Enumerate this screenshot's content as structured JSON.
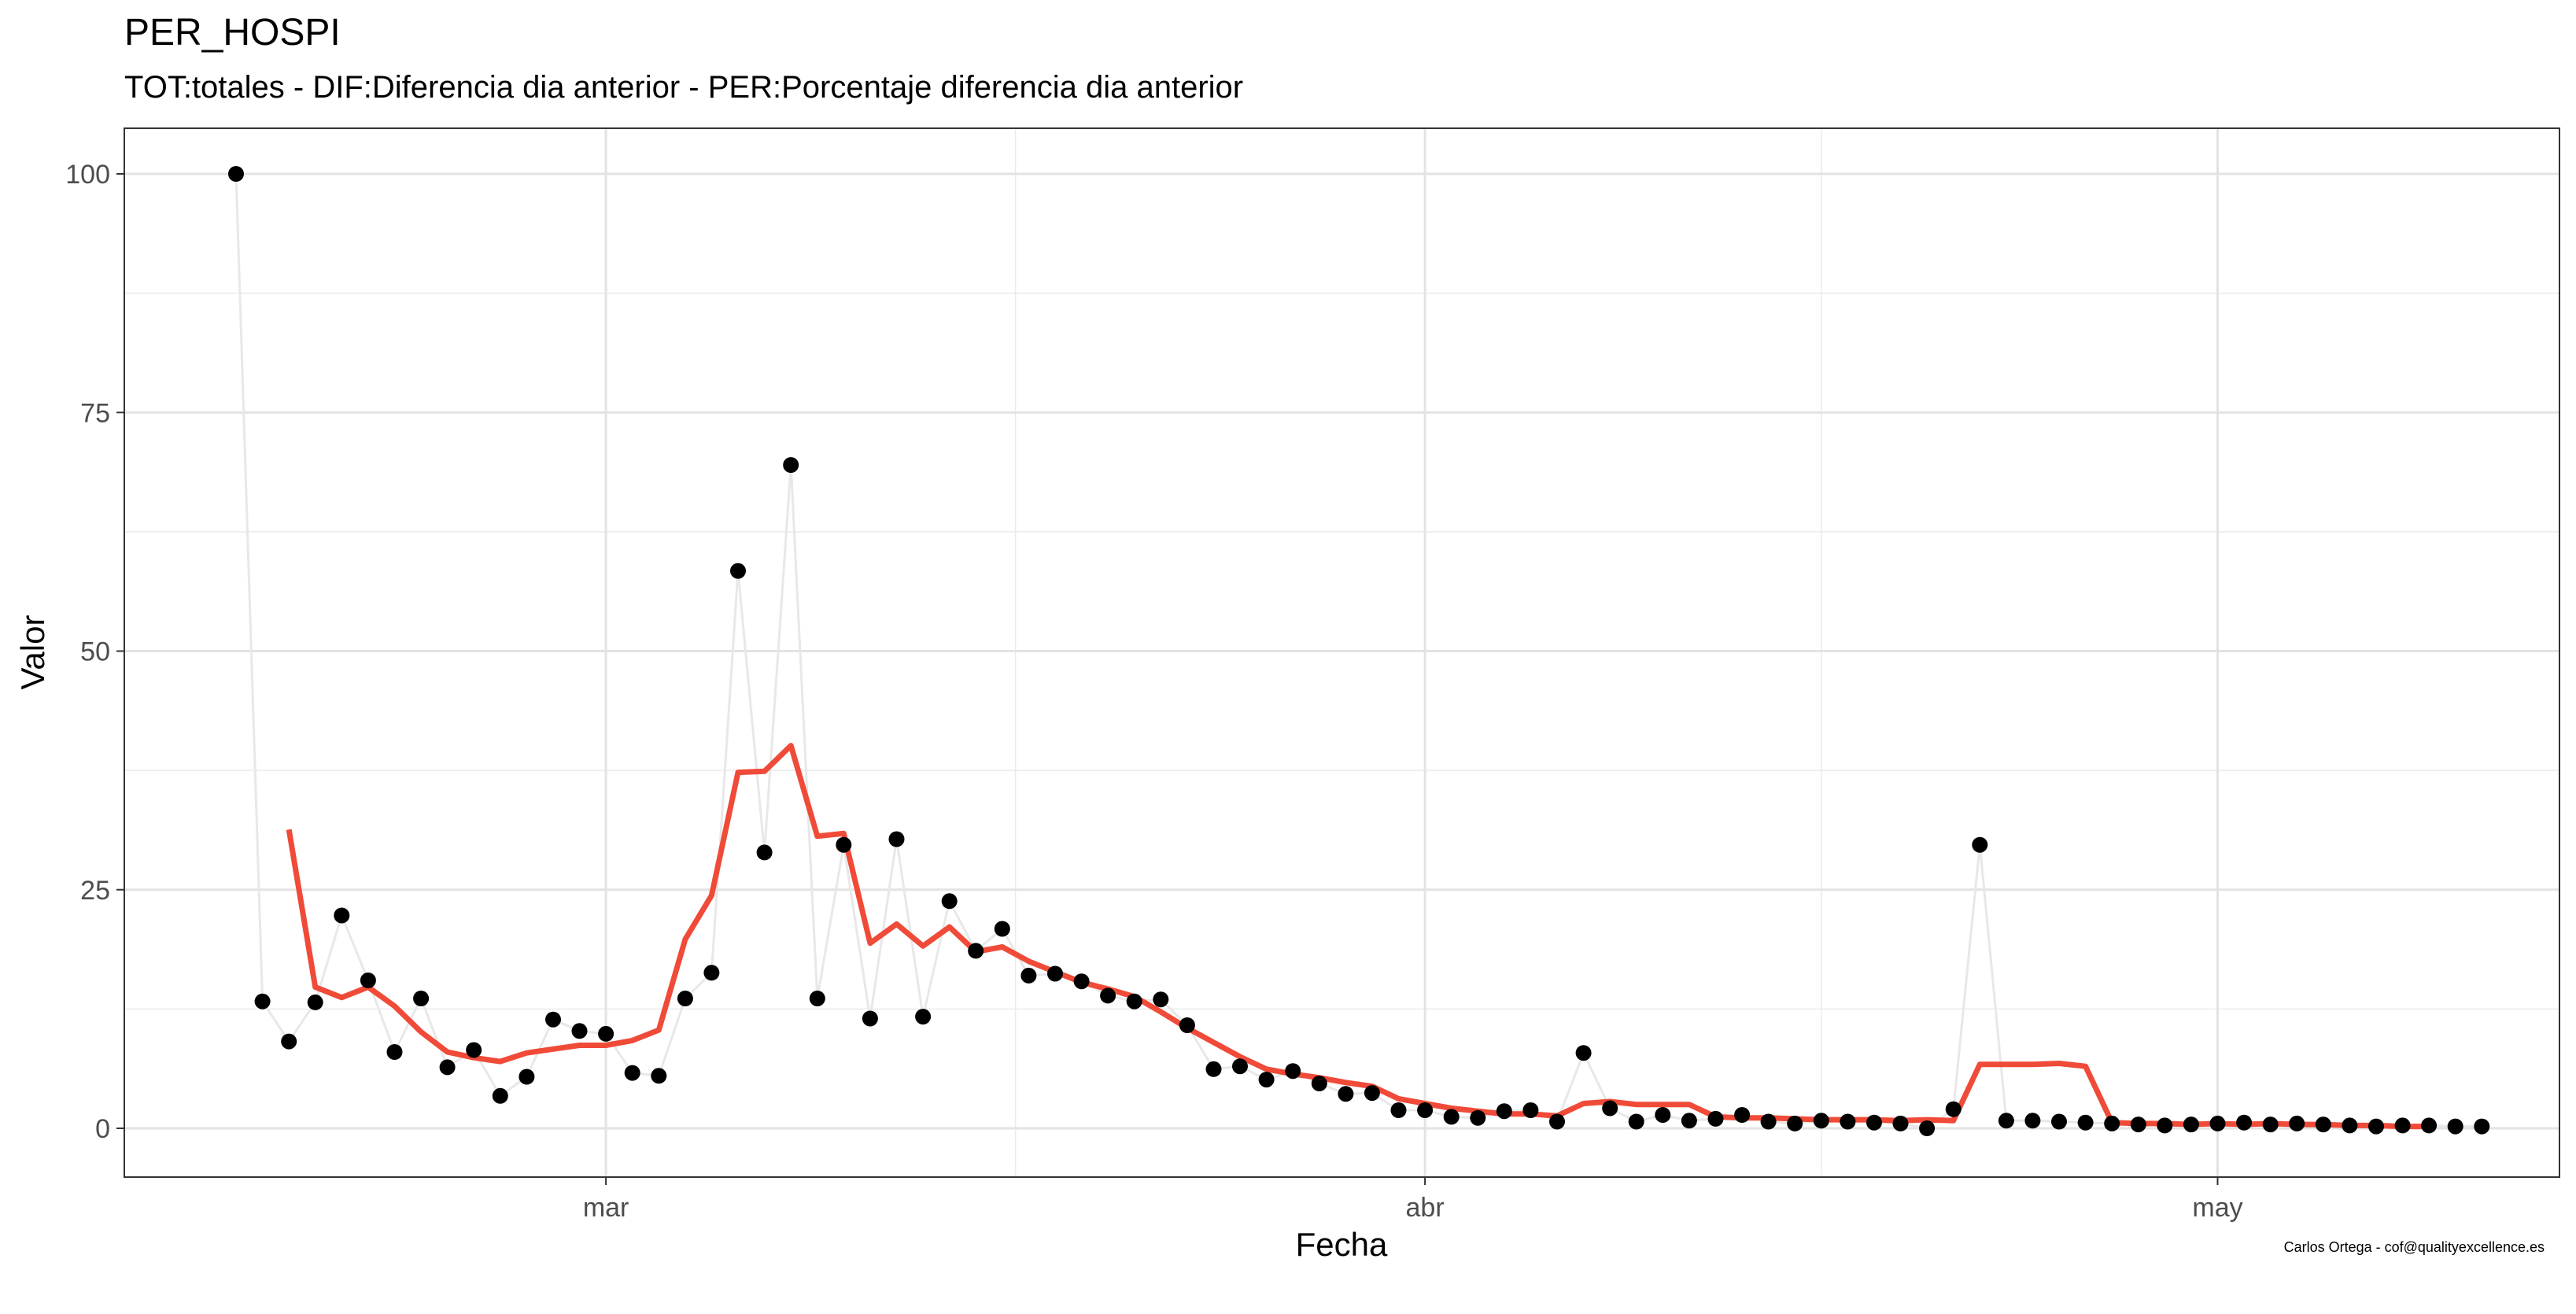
{
  "chart_data": {
    "type": "line",
    "title": "PER_HOSPI",
    "subtitle": "TOT:totales - DIF:Diferencia dia anterior - PER:Porcentaje diferencia dia anterior",
    "xlabel": "Fecha",
    "ylabel": "Valor",
    "caption": "Carlos Ortega - cof@qualityexcellence.es",
    "x_tick_labels": [
      "mar",
      "abr",
      "may"
    ],
    "x_ticks": [
      "2020-03-01",
      "2020-04-01",
      "2020-05-01"
    ],
    "y_ticks": [
      0,
      25,
      50,
      75,
      100
    ],
    "ylim": [
      -5,
      105
    ],
    "grid": true,
    "start_date": "2020-02-16",
    "series": [
      {
        "type": "scatter",
        "color": "#000000",
        "values": [
          100,
          13.3,
          9.1,
          13.2,
          22.3,
          15.5,
          8.0,
          13.6,
          6.4,
          8.2,
          3.4,
          5.4,
          11.4,
          10.2,
          9.9,
          5.8,
          5.5,
          13.6,
          16.3,
          58.4,
          28.9,
          69.5,
          13.6,
          29.7,
          11.5,
          30.3,
          11.7,
          23.8,
          18.6,
          20.9,
          16.0,
          16.2,
          15.4,
          13.9,
          13.3,
          13.5,
          10.8,
          6.2,
          6.5,
          5.1,
          6.0,
          4.7,
          3.6,
          3.7,
          1.9,
          1.9,
          1.2,
          1.1,
          1.8,
          1.9,
          0.7,
          7.9,
          2.1,
          0.7,
          1.4,
          0.8,
          1.0,
          1.4,
          0.7,
          0.5,
          0.8,
          0.7,
          0.6,
          0.5,
          0.0,
          2.0,
          29.7,
          0.8,
          0.8,
          0.7,
          0.6,
          0.5,
          0.4,
          0.3,
          0.4,
          0.5,
          0.6,
          0.4,
          0.5,
          0.4,
          0.3,
          0.2,
          0.3,
          0.3,
          0.2,
          0.2
        ]
      },
      {
        "type": "line",
        "color": "#f04a38",
        "start_index": 2,
        "values": [
          31.3,
          14.8,
          13.7,
          14.8,
          12.8,
          10.1,
          8.0,
          7.4,
          7.0,
          7.9,
          8.3,
          8.7,
          8.7,
          9.2,
          10.3,
          19.8,
          24.4,
          37.3,
          37.4,
          40.1,
          30.6,
          30.9,
          19.4,
          21.4,
          19.1,
          21.1,
          18.5,
          19.0,
          17.5,
          16.4,
          15.3,
          14.6,
          13.8,
          12.2,
          10.5,
          9.0,
          7.5,
          6.2,
          5.7,
          5.3,
          4.8,
          4.4,
          3.1,
          2.6,
          2.1,
          1.8,
          1.5,
          1.5,
          1.3,
          2.6,
          2.8,
          2.5,
          2.5,
          2.5,
          1.2,
          1.1,
          1.1,
          1.0,
          0.9,
          0.9,
          0.9,
          0.8,
          0.9,
          0.8,
          6.7,
          6.7,
          6.7,
          6.8,
          6.5,
          0.6,
          0.5,
          0.5,
          0.4,
          0.5,
          0.4,
          0.5,
          0.4,
          0.4,
          0.3,
          0.3,
          0.2,
          0.2
        ]
      },
      {
        "type": "line",
        "color": "#e8e8e8",
        "values": [
          100,
          13.3,
          9.1,
          13.2,
          22.3,
          15.5,
          8.0,
          13.6,
          6.4,
          8.2,
          3.4,
          5.4,
          11.4,
          10.2,
          9.9,
          5.8,
          5.5,
          13.6,
          16.3,
          58.4,
          28.9,
          69.5,
          13.6,
          29.7,
          11.5,
          30.3,
          11.7,
          23.8,
          18.6,
          20.9,
          16.0,
          16.2,
          15.4,
          13.9,
          13.3,
          13.5,
          10.8,
          6.2,
          6.5,
          5.1,
          6.0,
          4.7,
          3.6,
          3.7,
          1.9,
          1.9,
          1.2,
          1.1,
          1.8,
          1.9,
          0.7,
          7.9,
          2.1,
          0.7,
          1.4,
          0.8,
          1.0,
          1.4,
          0.7,
          0.5,
          0.8,
          0.7,
          0.6,
          0.5,
          0.0,
          2.0,
          29.7,
          0.8,
          0.8,
          0.7,
          0.6,
          0.5,
          0.4,
          0.3,
          0.4,
          0.5,
          0.6,
          0.4,
          0.5,
          0.4,
          0.3,
          0.2,
          0.3,
          0.3,
          0.2,
          0.2
        ]
      }
    ]
  }
}
